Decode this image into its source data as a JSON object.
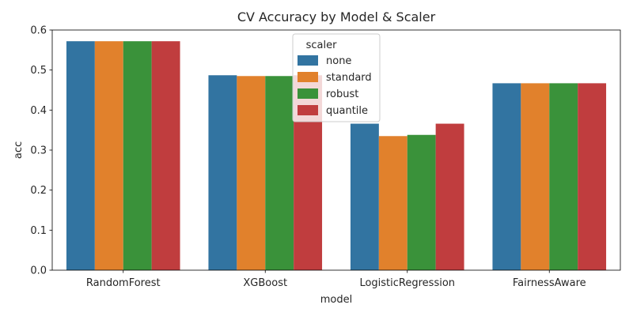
{
  "chart_data": {
    "type": "bar",
    "title": "CV Accuracy by Model & Scaler",
    "xlabel": "model",
    "ylabel": "acc",
    "ylim": [
      0,
      0.6
    ],
    "yticks": [
      "0.0",
      "0.1",
      "0.2",
      "0.3",
      "0.4",
      "0.5",
      "0.6"
    ],
    "categories": [
      "RandomForest",
      "XGBoost",
      "LogisticRegression",
      "FairnessAware"
    ],
    "series": [
      {
        "name": "none",
        "color": "#3274a1",
        "values": [
          0.572,
          0.487,
          0.366,
          0.467
        ]
      },
      {
        "name": "standard",
        "color": "#e1812c",
        "values": [
          0.572,
          0.485,
          0.335,
          0.467
        ]
      },
      {
        "name": "robust",
        "color": "#3a923a",
        "values": [
          0.572,
          0.485,
          0.338,
          0.467
        ]
      },
      {
        "name": "quantile",
        "color": "#c03d3e",
        "values": [
          0.572,
          0.487,
          0.366,
          0.467
        ]
      }
    ],
    "legend": {
      "title": "scaler",
      "placement": "top-center"
    },
    "grid": false
  }
}
